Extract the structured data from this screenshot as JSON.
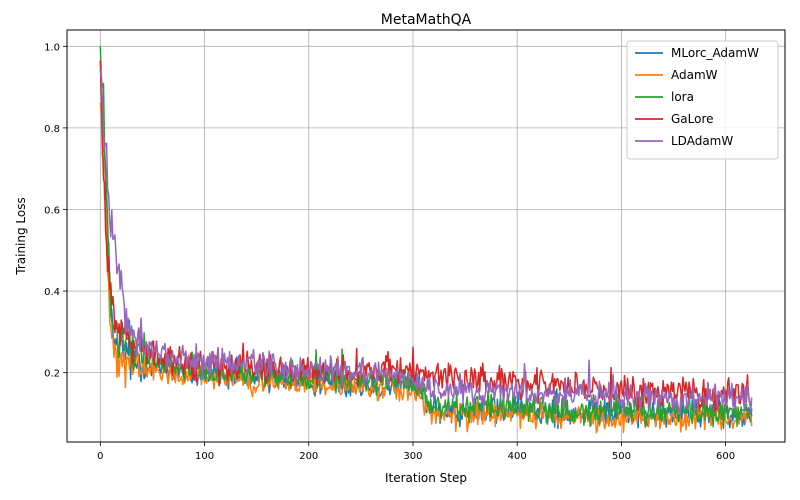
{
  "chart_data": {
    "type": "line",
    "title": "MetaMathQA",
    "xlabel": "Iteration Step",
    "ylabel": "Training Loss",
    "xlim": [
      -32,
      657
    ],
    "ylim": [
      0.03,
      1.04
    ],
    "xticks": [
      0,
      100,
      200,
      300,
      400,
      500,
      600
    ],
    "yticks": [
      0.2,
      0.4,
      0.6,
      0.8,
      1.0
    ],
    "xtick_labels": [
      "0",
      "100",
      "200",
      "300",
      "400",
      "500",
      "600"
    ],
    "ytick_labels": [
      "0.2",
      "0.4",
      "0.6",
      "0.8",
      "1.0"
    ],
    "grid": true,
    "legend_position": "top-right",
    "n_steps": 626,
    "series": [
      {
        "name": "MLorc_AdamW",
        "color": "#1f77b4",
        "keypoints": [
          [
            0,
            0.97
          ],
          [
            3,
            0.8
          ],
          [
            6,
            0.58
          ],
          [
            10,
            0.34
          ],
          [
            13,
            0.27
          ],
          [
            20,
            0.25
          ],
          [
            40,
            0.225
          ],
          [
            80,
            0.2
          ],
          [
            150,
            0.185
          ],
          [
            250,
            0.175
          ],
          [
            310,
            0.165
          ],
          [
            313,
            0.11
          ],
          [
            400,
            0.105
          ],
          [
            500,
            0.1
          ],
          [
            625,
            0.098
          ]
        ],
        "noise": 0.017
      },
      {
        "name": "AdamW",
        "color": "#ff7f0e",
        "keypoints": [
          [
            0,
            0.88
          ],
          [
            3,
            0.7
          ],
          [
            6,
            0.5
          ],
          [
            10,
            0.33
          ],
          [
            14,
            0.26
          ],
          [
            20,
            0.23
          ],
          [
            40,
            0.21
          ],
          [
            80,
            0.19
          ],
          [
            150,
            0.175
          ],
          [
            250,
            0.165
          ],
          [
            310,
            0.155
          ],
          [
            313,
            0.1
          ],
          [
            400,
            0.095
          ],
          [
            500,
            0.09
          ],
          [
            625,
            0.088
          ]
        ],
        "noise": 0.016
      },
      {
        "name": "lora",
        "color": "#2ca02c",
        "keypoints": [
          [
            0,
            0.99
          ],
          [
            3,
            0.86
          ],
          [
            6,
            0.6
          ],
          [
            10,
            0.36
          ],
          [
            14,
            0.29
          ],
          [
            20,
            0.27
          ],
          [
            40,
            0.235
          ],
          [
            80,
            0.21
          ],
          [
            150,
            0.195
          ],
          [
            250,
            0.18
          ],
          [
            310,
            0.17
          ],
          [
            313,
            0.12
          ],
          [
            400,
            0.115
          ],
          [
            500,
            0.105
          ],
          [
            625,
            0.1
          ]
        ],
        "noise": 0.017
      },
      {
        "name": "GaLore",
        "color": "#d62728",
        "keypoints": [
          [
            0,
            0.98
          ],
          [
            3,
            0.72
          ],
          [
            6,
            0.5
          ],
          [
            10,
            0.38
          ],
          [
            14,
            0.34
          ],
          [
            20,
            0.32
          ],
          [
            30,
            0.27
          ],
          [
            60,
            0.235
          ],
          [
            100,
            0.225
          ],
          [
            200,
            0.205
          ],
          [
            300,
            0.2
          ],
          [
            320,
            0.195
          ],
          [
            400,
            0.175
          ],
          [
            500,
            0.158
          ],
          [
            625,
            0.14
          ]
        ],
        "noise": 0.019
      },
      {
        "name": "LDAdamW",
        "color": "#9467bd",
        "keypoints": [
          [
            0,
            0.98
          ],
          [
            4,
            0.75
          ],
          [
            8,
            0.6
          ],
          [
            12,
            0.52
          ],
          [
            18,
            0.44
          ],
          [
            22,
            0.37
          ],
          [
            28,
            0.3
          ],
          [
            40,
            0.27
          ],
          [
            70,
            0.235
          ],
          [
            150,
            0.215
          ],
          [
            250,
            0.2
          ],
          [
            305,
            0.185
          ],
          [
            315,
            0.16
          ],
          [
            400,
            0.15
          ],
          [
            500,
            0.14
          ],
          [
            625,
            0.135
          ]
        ],
        "noise": 0.017
      }
    ]
  }
}
